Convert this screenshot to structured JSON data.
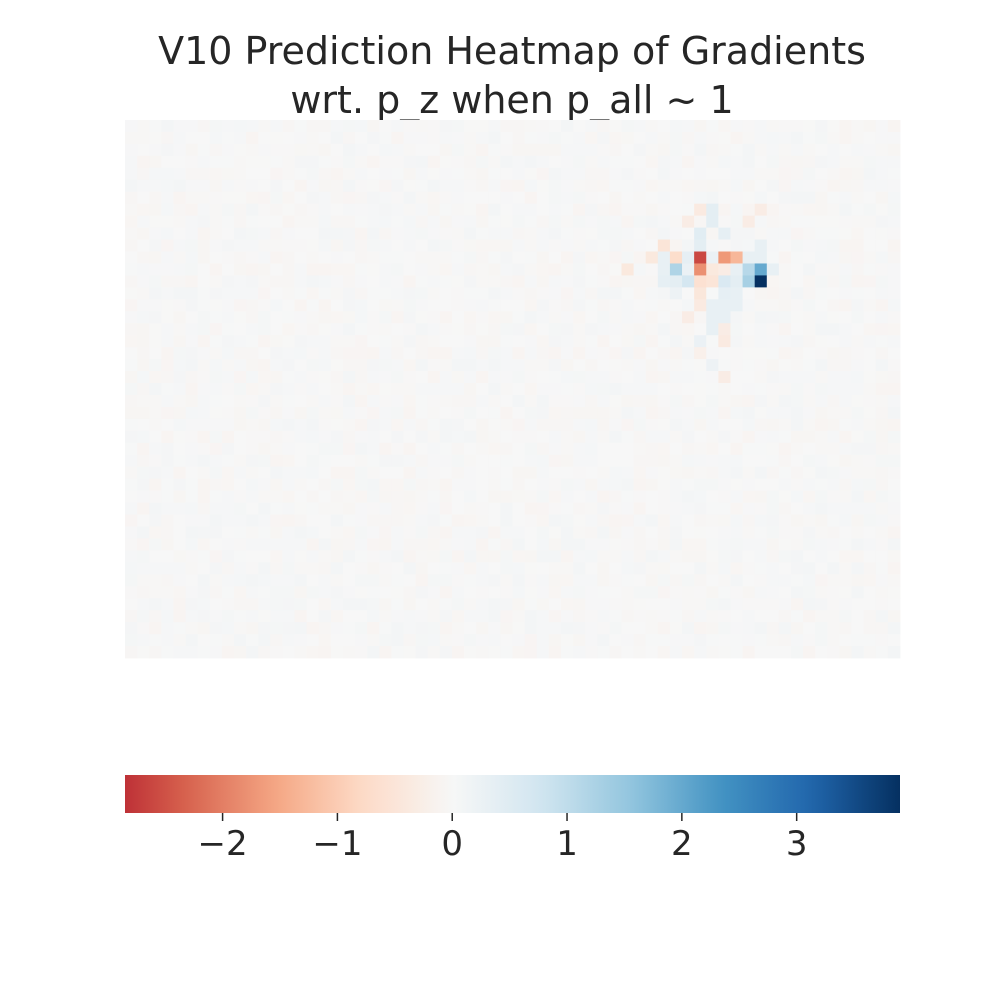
{
  "chart_data": {
    "type": "heatmap",
    "title_lines": [
      "V10 Prediction Heatmap of Gradients",
      "wrt. p_z when p_all ~ 1"
    ],
    "xlabel": "",
    "ylabel": "",
    "axes_visible": false,
    "grid": false,
    "colormap": "RdBu",
    "colormap_stops": [
      "#67001f",
      "#b2182b",
      "#d6604d",
      "#f4a582",
      "#fddbc7",
      "#f7f7f7",
      "#d1e5f0",
      "#92c5de",
      "#4393c3",
      "#2166ac",
      "#053061"
    ],
    "value_range": [
      -2.85,
      3.9
    ],
    "grid_size": {
      "rows": 45,
      "cols": 64
    },
    "background_noise_amplitude": 0.08,
    "hotspot_cells": [
      {
        "row": 13,
        "col": 47,
        "value": -0.6
      },
      {
        "row": 13,
        "col": 48,
        "value": -0.5
      },
      {
        "row": 14,
        "col": 47,
        "value": -0.45
      },
      {
        "row": 15,
        "col": 47,
        "value": -0.35
      },
      {
        "row": 7,
        "col": 47,
        "value": -0.35
      },
      {
        "row": 8,
        "col": 46,
        "value": -0.3
      },
      {
        "row": 7,
        "col": 52,
        "value": -0.3
      },
      {
        "row": 8,
        "col": 51,
        "value": -0.3
      },
      {
        "row": 7,
        "col": 48,
        "value": 0.4
      },
      {
        "row": 8,
        "col": 48,
        "value": 0.4
      },
      {
        "row": 9,
        "col": 47,
        "value": 0.45
      },
      {
        "row": 9,
        "col": 49,
        "value": 0.35
      },
      {
        "row": 10,
        "col": 44,
        "value": -0.5
      },
      {
        "row": 10,
        "col": 47,
        "value": 0.4
      },
      {
        "row": 10,
        "col": 52,
        "value": 0.3
      },
      {
        "row": 11,
        "col": 43,
        "value": -0.4
      },
      {
        "row": 11,
        "col": 44,
        "value": 0.3
      },
      {
        "row": 11,
        "col": 45,
        "value": -0.7
      },
      {
        "row": 11,
        "col": 46,
        "value": 0.35
      },
      {
        "row": 11,
        "col": 47,
        "value": -2.6
      },
      {
        "row": 11,
        "col": 48,
        "value": 0.25
      },
      {
        "row": 11,
        "col": 49,
        "value": -1.7
      },
      {
        "row": 11,
        "col": 50,
        "value": -1.3
      },
      {
        "row": 11,
        "col": 51,
        "value": 0.3
      },
      {
        "row": 11,
        "col": 52,
        "value": 0.3
      },
      {
        "row": 12,
        "col": 41,
        "value": -0.4
      },
      {
        "row": 12,
        "col": 44,
        "value": 0.3
      },
      {
        "row": 12,
        "col": 45,
        "value": 1.2
      },
      {
        "row": 12,
        "col": 46,
        "value": 0.25
      },
      {
        "row": 12,
        "col": 47,
        "value": -1.8
      },
      {
        "row": 12,
        "col": 48,
        "value": -0.4
      },
      {
        "row": 12,
        "col": 49,
        "value": -0.3
      },
      {
        "row": 12,
        "col": 50,
        "value": 0.3
      },
      {
        "row": 12,
        "col": 51,
        "value": 1.1
      },
      {
        "row": 12,
        "col": 52,
        "value": 2.0
      },
      {
        "row": 12,
        "col": 53,
        "value": 0.3
      },
      {
        "row": 13,
        "col": 44,
        "value": 0.35
      },
      {
        "row": 13,
        "col": 45,
        "value": 0.4
      },
      {
        "row": 13,
        "col": 46,
        "value": 0.7
      },
      {
        "row": 13,
        "col": 49,
        "value": 0.6
      },
      {
        "row": 13,
        "col": 50,
        "value": 0.4
      },
      {
        "row": 13,
        "col": 51,
        "value": 1.3
      },
      {
        "row": 13,
        "col": 52,
        "value": 3.9
      },
      {
        "row": 14,
        "col": 45,
        "value": 0.2
      },
      {
        "row": 14,
        "col": 49,
        "value": 0.35
      },
      {
        "row": 14,
        "col": 50,
        "value": 0.3
      },
      {
        "row": 15,
        "col": 48,
        "value": 0.3
      },
      {
        "row": 15,
        "col": 49,
        "value": 0.3
      },
      {
        "row": 15,
        "col": 50,
        "value": 0.3
      },
      {
        "row": 16,
        "col": 46,
        "value": -0.3
      },
      {
        "row": 16,
        "col": 48,
        "value": 0.3
      },
      {
        "row": 16,
        "col": 49,
        "value": 0.3
      },
      {
        "row": 17,
        "col": 48,
        "value": 0.3
      },
      {
        "row": 17,
        "col": 49,
        "value": -0.3
      },
      {
        "row": 18,
        "col": 47,
        "value": 0.25
      },
      {
        "row": 18,
        "col": 49,
        "value": -0.35
      },
      {
        "row": 19,
        "col": 47,
        "value": -0.2
      },
      {
        "row": 20,
        "col": 48,
        "value": 0.2
      },
      {
        "row": 21,
        "col": 49,
        "value": -0.3
      }
    ],
    "colorbar": {
      "orientation": "horizontal",
      "ticks": [
        -2,
        -1,
        0,
        1,
        2,
        3
      ],
      "tick_labels": [
        "−2",
        "−1",
        "0",
        "1",
        "2",
        "3"
      ]
    }
  }
}
